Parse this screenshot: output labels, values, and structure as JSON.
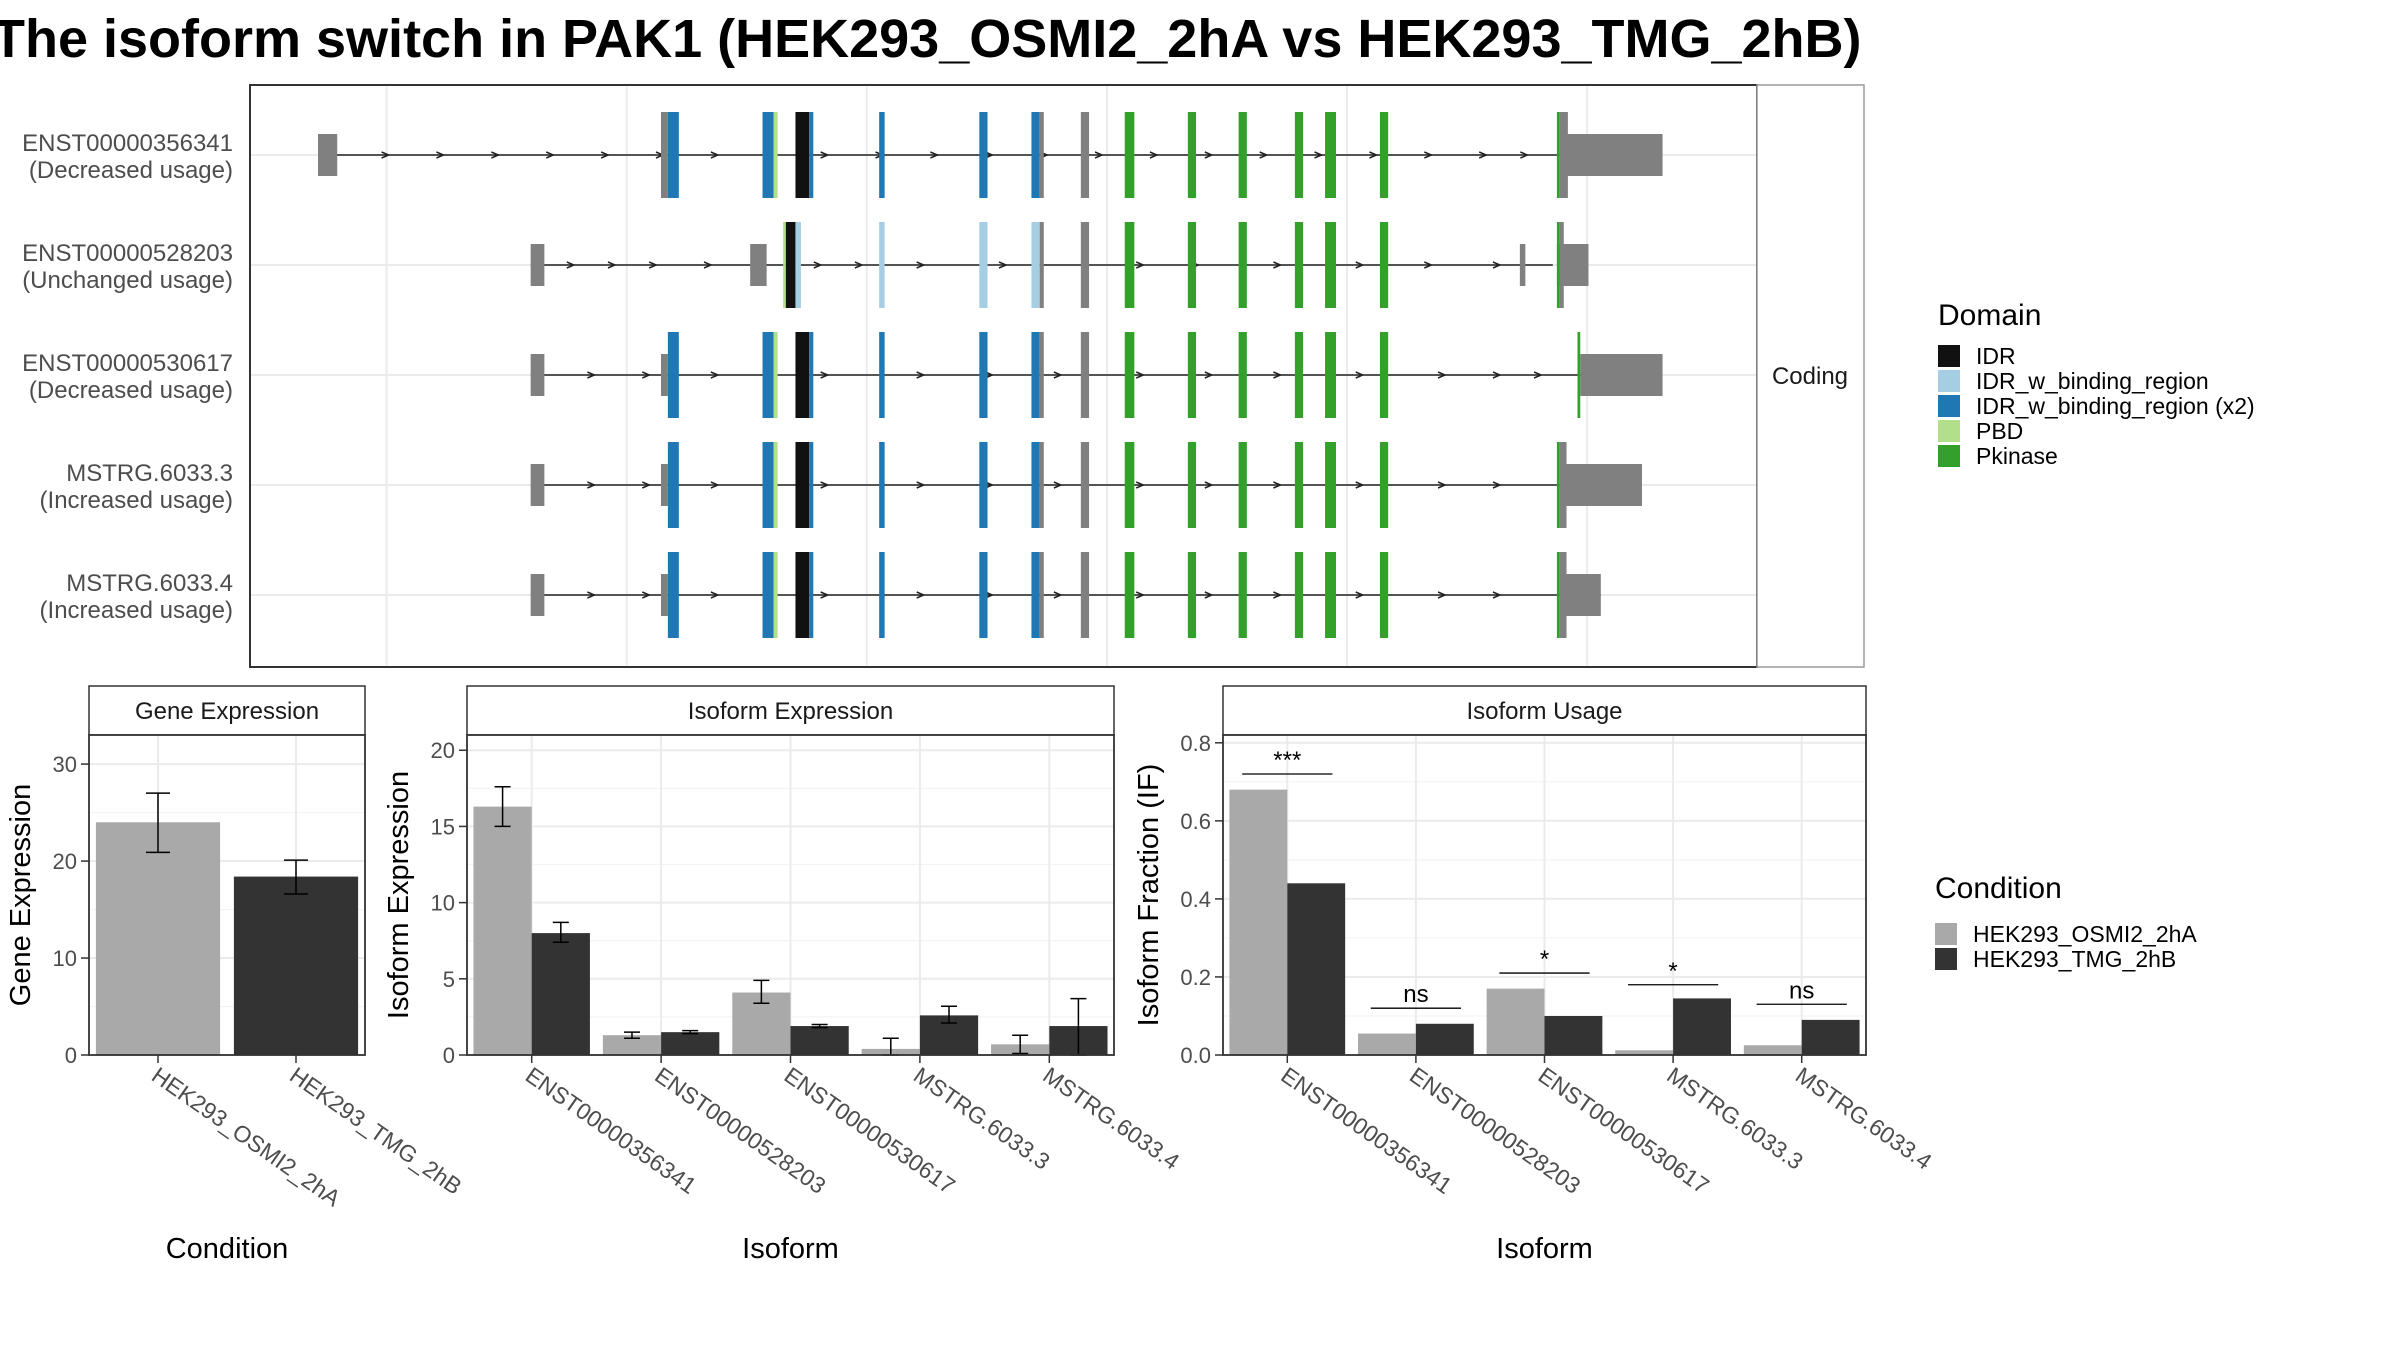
{
  "title": "The isoform switch in PAK1 (HEK293_OSMI2_2hA vs HEK293_TMG_2hB)",
  "colors": {
    "intron": "#222222",
    "utr": "#808080",
    "cds_plain": "#808080",
    "panel_border": "#333333",
    "strip_bg": "#ffffff",
    "grid": "#ebebeb",
    "cond1": "#a9a9a9",
    "cond2": "#333333"
  },
  "structure": {
    "facet_label": "Coding",
    "genomic_range": [
      0,
      1000
    ],
    "isoforms": [
      {
        "id": "ENST00000356341",
        "usage": "(Decreased usage)",
        "introns": [
          [
            0,
            935
          ]
        ],
        "arrows": [
          50,
          90,
          130,
          170,
          210,
          250,
          290,
          330,
          370,
          410,
          450,
          490,
          530,
          570,
          610,
          650,
          690,
          730,
          770,
          810,
          850,
          880
        ],
        "utrs": [
          [
            0,
            14
          ],
          [
            910,
            980
          ]
        ],
        "exons": [
          {
            "r": [
              250,
              255
            ],
            "c": "#808080"
          },
          {
            "r": [
              255,
              263
            ],
            "c": "#1f78b4"
          },
          {
            "r": [
              324,
              332
            ],
            "c": "#1f78b4"
          },
          {
            "r": [
              332,
              335
            ],
            "c": "#b2df8a"
          },
          {
            "r": [
              348,
              358
            ],
            "c": "#111111"
          },
          {
            "r": [
              358,
              361
            ],
            "c": "#1f78b4"
          },
          {
            "r": [
              409,
              413
            ],
            "c": "#1f78b4"
          },
          {
            "r": [
              482,
              488
            ],
            "c": "#1f78b4"
          },
          {
            "r": [
              520,
              526
            ],
            "c": "#1f78b4"
          },
          {
            "r": [
              526,
              529
            ],
            "c": "#808080"
          },
          {
            "r": [
              556,
              562
            ],
            "c": "#808080"
          },
          {
            "r": [
              588,
              595
            ],
            "c": "#33a02c"
          },
          {
            "r": [
              634,
              640
            ],
            "c": "#33a02c"
          },
          {
            "r": [
              671,
              677
            ],
            "c": "#33a02c"
          },
          {
            "r": [
              712,
              718
            ],
            "c": "#33a02c"
          },
          {
            "r": [
              734,
              742
            ],
            "c": "#33a02c"
          },
          {
            "r": [
              774,
              780
            ],
            "c": "#33a02c"
          },
          {
            "r": [
              903,
              905
            ],
            "c": "#33a02c"
          },
          {
            "r": [
              905,
              911
            ],
            "c": "#808080"
          }
        ]
      },
      {
        "id": "ENST00000528203",
        "usage": "(Unchanged usage)",
        "introns": [
          [
            155,
            900
          ]
        ],
        "arrows": [
          185,
          215,
          245,
          285,
          365,
          395,
          440,
          500,
          600,
          640,
          700,
          760,
          810,
          860
        ],
        "utrs": [
          [
            155,
            165
          ],
          [
            315,
            327
          ],
          [
            876,
            880
          ],
          [
            903,
            926
          ]
        ],
        "exons": [
          {
            "r": [
              339,
              341
            ],
            "c": "#b2df8a"
          },
          {
            "r": [
              341,
              348
            ],
            "c": "#111111"
          },
          {
            "r": [
              348,
              352
            ],
            "c": "#a6cee3"
          },
          {
            "r": [
              409,
              413
            ],
            "c": "#a6cee3"
          },
          {
            "r": [
              482,
              488
            ],
            "c": "#a6cee3"
          },
          {
            "r": [
              520,
              526
            ],
            "c": "#a6cee3"
          },
          {
            "r": [
              526,
              529
            ],
            "c": "#808080"
          },
          {
            "r": [
              556,
              562
            ],
            "c": "#808080"
          },
          {
            "r": [
              588,
              595
            ],
            "c": "#33a02c"
          },
          {
            "r": [
              634,
              640
            ],
            "c": "#33a02c"
          },
          {
            "r": [
              671,
              677
            ],
            "c": "#33a02c"
          },
          {
            "r": [
              712,
              718
            ],
            "c": "#33a02c"
          },
          {
            "r": [
              734,
              742
            ],
            "c": "#33a02c"
          },
          {
            "r": [
              774,
              780
            ],
            "c": "#33a02c"
          },
          {
            "r": [
              903,
              905
            ],
            "c": "#33a02c"
          },
          {
            "r": [
              905,
              908
            ],
            "c": "#808080"
          }
        ]
      },
      {
        "id": "ENST00000530617",
        "usage": "(Decreased usage)",
        "introns": [
          [
            155,
            950
          ]
        ],
        "arrows": [
          200,
          240,
          290,
          330,
          370,
          440,
          490,
          540,
          600,
          650,
          700,
          760,
          820,
          860,
          890
        ],
        "utrs": [
          [
            155,
            165
          ],
          [
            250,
            255
          ],
          [
            920,
            980
          ]
        ],
        "exons": [
          {
            "r": [
              255,
              263
            ],
            "c": "#1f78b4"
          },
          {
            "r": [
              324,
              332
            ],
            "c": "#1f78b4"
          },
          {
            "r": [
              332,
              335
            ],
            "c": "#b2df8a"
          },
          {
            "r": [
              348,
              358
            ],
            "c": "#111111"
          },
          {
            "r": [
              358,
              361
            ],
            "c": "#1f78b4"
          },
          {
            "r": [
              409,
              413
            ],
            "c": "#1f78b4"
          },
          {
            "r": [
              482,
              488
            ],
            "c": "#1f78b4"
          },
          {
            "r": [
              520,
              526
            ],
            "c": "#1f78b4"
          },
          {
            "r": [
              526,
              529
            ],
            "c": "#808080"
          },
          {
            "r": [
              556,
              562
            ],
            "c": "#808080"
          },
          {
            "r": [
              588,
              595
            ],
            "c": "#33a02c"
          },
          {
            "r": [
              634,
              640
            ],
            "c": "#33a02c"
          },
          {
            "r": [
              671,
              677
            ],
            "c": "#33a02c"
          },
          {
            "r": [
              712,
              718
            ],
            "c": "#33a02c"
          },
          {
            "r": [
              734,
              742
            ],
            "c": "#33a02c"
          },
          {
            "r": [
              774,
              780
            ],
            "c": "#33a02c"
          },
          {
            "r": [
              918,
              920
            ],
            "c": "#33a02c"
          }
        ]
      },
      {
        "id": "MSTRG.6033.3",
        "usage": "(Increased usage)",
        "introns": [
          [
            155,
            935
          ]
        ],
        "arrows": [
          200,
          240,
          290,
          330,
          370,
          440,
          490,
          540,
          600,
          650,
          700,
          760,
          820,
          860
        ],
        "utrs": [
          [
            155,
            165
          ],
          [
            250,
            255
          ],
          [
            910,
            965
          ]
        ],
        "exons": [
          {
            "r": [
              255,
              263
            ],
            "c": "#1f78b4"
          },
          {
            "r": [
              324,
              332
            ],
            "c": "#1f78b4"
          },
          {
            "r": [
              332,
              335
            ],
            "c": "#b2df8a"
          },
          {
            "r": [
              348,
              358
            ],
            "c": "#111111"
          },
          {
            "r": [
              358,
              361
            ],
            "c": "#1f78b4"
          },
          {
            "r": [
              409,
              413
            ],
            "c": "#1f78b4"
          },
          {
            "r": [
              482,
              488
            ],
            "c": "#1f78b4"
          },
          {
            "r": [
              520,
              526
            ],
            "c": "#1f78b4"
          },
          {
            "r": [
              526,
              529
            ],
            "c": "#808080"
          },
          {
            "r": [
              556,
              562
            ],
            "c": "#808080"
          },
          {
            "r": [
              588,
              595
            ],
            "c": "#33a02c"
          },
          {
            "r": [
              634,
              640
            ],
            "c": "#33a02c"
          },
          {
            "r": [
              671,
              677
            ],
            "c": "#33a02c"
          },
          {
            "r": [
              712,
              718
            ],
            "c": "#33a02c"
          },
          {
            "r": [
              734,
              742
            ],
            "c": "#33a02c"
          },
          {
            "r": [
              774,
              780
            ],
            "c": "#33a02c"
          },
          {
            "r": [
              903,
              905
            ],
            "c": "#33a02c"
          },
          {
            "r": [
              905,
              910
            ],
            "c": "#808080"
          }
        ]
      },
      {
        "id": "MSTRG.6033.4",
        "usage": "(Increased usage)",
        "introns": [
          [
            155,
            935
          ]
        ],
        "arrows": [
          200,
          240,
          290,
          330,
          370,
          440,
          490,
          540,
          600,
          650,
          700,
          760,
          820,
          860
        ],
        "utrs": [
          [
            155,
            165
          ],
          [
            250,
            255
          ],
          [
            910,
            935
          ]
        ],
        "exons": [
          {
            "r": [
              255,
              263
            ],
            "c": "#1f78b4"
          },
          {
            "r": [
              324,
              332
            ],
            "c": "#1f78b4"
          },
          {
            "r": [
              332,
              335
            ],
            "c": "#b2df8a"
          },
          {
            "r": [
              348,
              358
            ],
            "c": "#111111"
          },
          {
            "r": [
              358,
              361
            ],
            "c": "#1f78b4"
          },
          {
            "r": [
              409,
              413
            ],
            "c": "#1f78b4"
          },
          {
            "r": [
              482,
              488
            ],
            "c": "#1f78b4"
          },
          {
            "r": [
              520,
              526
            ],
            "c": "#1f78b4"
          },
          {
            "r": [
              526,
              529
            ],
            "c": "#808080"
          },
          {
            "r": [
              556,
              562
            ],
            "c": "#808080"
          },
          {
            "r": [
              588,
              595
            ],
            "c": "#33a02c"
          },
          {
            "r": [
              634,
              640
            ],
            "c": "#33a02c"
          },
          {
            "r": [
              671,
              677
            ],
            "c": "#33a02c"
          },
          {
            "r": [
              712,
              718
            ],
            "c": "#33a02c"
          },
          {
            "r": [
              734,
              742
            ],
            "c": "#33a02c"
          },
          {
            "r": [
              774,
              780
            ],
            "c": "#33a02c"
          },
          {
            "r": [
              903,
              905
            ],
            "c": "#33a02c"
          },
          {
            "r": [
              905,
              910
            ],
            "c": "#808080"
          }
        ]
      }
    ]
  },
  "domain_legend": {
    "title": "Domain",
    "items": [
      {
        "label": "IDR",
        "color": "#111111"
      },
      {
        "label": "IDR_w_binding_region",
        "color": "#a6cee3"
      },
      {
        "label": "IDR_w_binding_region (x2)",
        "color": "#1f78b4"
      },
      {
        "label": "PBD",
        "color": "#b2df8a"
      },
      {
        "label": "Pkinase",
        "color": "#33a02c"
      }
    ]
  },
  "condition_legend": {
    "title": "Condition",
    "items": [
      {
        "label": "HEK293_OSMI2_2hA",
        "color": "#a9a9a9"
      },
      {
        "label": "HEK293_TMG_2hB",
        "color": "#333333"
      }
    ]
  },
  "chart_data": [
    {
      "type": "bar",
      "title": "Gene Expression",
      "xlabel": "Condition",
      "ylabel": "Gene Expression",
      "ylim": [
        0,
        33
      ],
      "yticks": [
        0,
        10,
        20,
        30
      ],
      "ytick_labels": [
        "0",
        "10",
        "20",
        "30"
      ],
      "categories": [
        "HEK293_OSMI2_2hA",
        "HEK293_TMG_2hB"
      ],
      "values": [
        24.0,
        18.4
      ],
      "errors": [
        [
          20.9,
          27.0
        ],
        [
          16.6,
          20.1
        ]
      ],
      "colors": [
        "#a9a9a9",
        "#333333"
      ]
    },
    {
      "type": "bar",
      "title": "Isoform Expression",
      "xlabel": "Isoform",
      "ylabel": "Isoform Expression",
      "ylim": [
        0,
        21
      ],
      "yticks": [
        0,
        5,
        10,
        15,
        20
      ],
      "ytick_labels": [
        "0",
        "5",
        "10",
        "15",
        "20"
      ],
      "categories": [
        "ENST00000356341",
        "ENST00000528203",
        "ENST00000530617",
        "MSTRG.6033.3",
        "MSTRG.6033.4"
      ],
      "series": [
        {
          "name": "HEK293_OSMI2_2hA",
          "values": [
            16.3,
            1.3,
            4.1,
            0.4,
            0.7
          ],
          "errors": [
            [
              15.0,
              17.6
            ],
            [
              1.1,
              1.5
            ],
            [
              3.4,
              4.9
            ],
            [
              0.0,
              1.1
            ],
            [
              0.1,
              1.3
            ]
          ]
        },
        {
          "name": "HEK293_TMG_2hB",
          "values": [
            8.0,
            1.5,
            1.9,
            2.6,
            1.9
          ],
          "errors": [
            [
              7.4,
              8.7
            ],
            [
              1.4,
              1.6
            ],
            [
              1.8,
              2.0
            ],
            [
              2.1,
              3.2
            ],
            [
              0.0,
              3.7
            ]
          ]
        }
      ]
    },
    {
      "type": "bar",
      "title": "Isoform Usage",
      "xlabel": "Isoform",
      "ylabel": "Isoform Fraction (IF)",
      "ylim": [
        0,
        0.82
      ],
      "yticks": [
        0,
        0.2,
        0.4,
        0.6,
        0.8
      ],
      "ytick_labels": [
        "0.0",
        "0.2",
        "0.4",
        "0.6",
        "0.8"
      ],
      "categories": [
        "ENST00000356341",
        "ENST00000528203",
        "ENST00000530617",
        "MSTRG.6033.3",
        "MSTRG.6033.4"
      ],
      "series": [
        {
          "name": "HEK293_OSMI2_2hA",
          "values": [
            0.68,
            0.055,
            0.17,
            0.012,
            0.025
          ]
        },
        {
          "name": "HEK293_TMG_2hB",
          "values": [
            0.44,
            0.08,
            0.1,
            0.145,
            0.09
          ]
        }
      ],
      "significance": [
        {
          "label": "***",
          "y": 0.72
        },
        {
          "label": "ns",
          "y": 0.12
        },
        {
          "label": "*",
          "y": 0.21
        },
        {
          "label": "*",
          "y": 0.18
        },
        {
          "label": "ns",
          "y": 0.13
        }
      ]
    }
  ]
}
